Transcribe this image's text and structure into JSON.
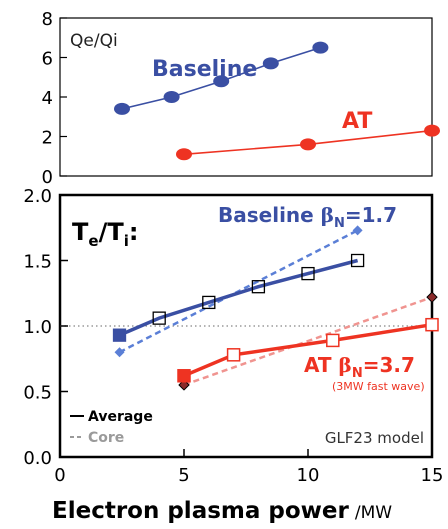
{
  "colors": {
    "baseline": "#3a4fa3",
    "baseline_core": "#5b7fd6",
    "at": "#ee3322",
    "at_core": "#f09490",
    "ref_line": "#9a9a9a"
  },
  "chart_data": [
    {
      "type": "line",
      "panel": "top",
      "title": "Qe/Qi",
      "ylim": [
        0,
        8
      ],
      "yticks": [
        "0",
        "2",
        "4",
        "6",
        "8"
      ],
      "xlim": [
        0,
        15
      ],
      "series": [
        {
          "name": "Baseline",
          "x": [
            2.5,
            4.5,
            6.5,
            8.5,
            10.5
          ],
          "y": [
            3.4,
            4.0,
            4.8,
            5.7,
            6.5
          ]
        },
        {
          "name": "AT",
          "x": [
            5.0,
            10.0,
            15.0
          ],
          "y": [
            1.1,
            1.6,
            2.3
          ]
        }
      ]
    },
    {
      "type": "line",
      "panel": "bottom",
      "title": "Te/Ti:",
      "xlabel": "Electron plasma power",
      "xunit": "/MW",
      "xlim": [
        0,
        15
      ],
      "ylim": [
        0.0,
        2.0
      ],
      "xticks": [
        "0",
        "5",
        "10",
        "15"
      ],
      "yticks": [
        "0.0",
        "0.5",
        "1.0",
        "1.5",
        "2.0"
      ],
      "reference_line": 1.0,
      "series_labels": {
        "baseline_name": "Baseline",
        "baseline_beta": "β",
        "baseline_beta_sub": "N",
        "baseline_beta_val": "=1.7",
        "at_name": "AT",
        "at_beta": "β",
        "at_beta_sub": "N",
        "at_beta_val": "=3.7",
        "at_note": "(3MW fast wave)"
      },
      "series": [
        {
          "name": "Baseline average",
          "x": [
            2.4,
            4.0,
            6.0,
            8.0,
            10.0,
            12.0
          ],
          "y": [
            0.93,
            1.06,
            1.18,
            1.3,
            1.4,
            1.5
          ]
        },
        {
          "name": "Baseline core",
          "x": [
            2.4,
            12.0
          ],
          "y": [
            0.8,
            1.73
          ]
        },
        {
          "name": "AT average",
          "x": [
            5.0,
            7.0,
            11.0,
            15.0
          ],
          "y": [
            0.62,
            0.78,
            0.89,
            1.01
          ]
        },
        {
          "name": "AT core",
          "x": [
            5.0,
            15.0
          ],
          "y": [
            0.55,
            1.22
          ]
        }
      ],
      "legend": {
        "average": "Average",
        "core": "Core",
        "position": "bottom-left"
      },
      "annotation": "GLF23 model"
    }
  ]
}
